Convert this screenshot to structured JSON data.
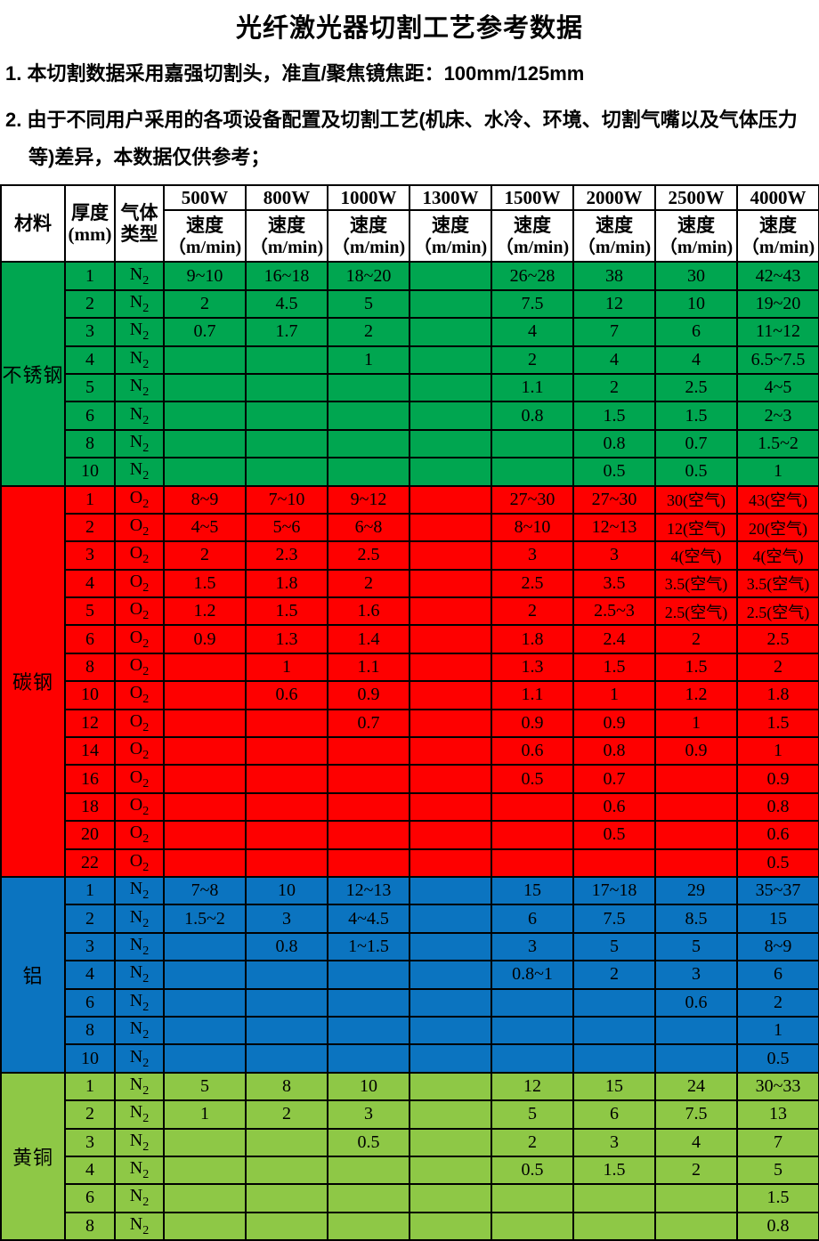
{
  "title": "光纤激光器切割工艺参考数据",
  "notes": [
    "1. 本切割数据采用嘉强切割头，准直/聚焦镜焦距：100mm/125mm",
    "2. 由于不同用户采用的各项设备配置及切割工艺(机床、水冷、环境、切割气嘴以及气体压力等)差异，本数据仅供参考；"
  ],
  "table": {
    "header": {
      "material": "材料",
      "thickness_line1": "厚度",
      "thickness_line2": "(mm)",
      "gas_line1": "气体",
      "gas_line2": "类型",
      "powers": [
        "500W",
        "800W",
        "1000W",
        "1300W",
        "1500W",
        "2000W",
        "2500W",
        "4000W"
      ],
      "speed_line1": "速度",
      "speed_line2": "（m/min)"
    },
    "sections": [
      {
        "material": "不锈钢",
        "color": "#00A650",
        "rows": [
          {
            "thickness": "1",
            "gas": "N2",
            "speeds": [
              "9~10",
              "16~18",
              "18~20",
              "",
              "26~28",
              "38",
              "30",
              "42~43"
            ]
          },
          {
            "thickness": "2",
            "gas": "N2",
            "speeds": [
              "2",
              "4.5",
              "5",
              "",
              "7.5",
              "12",
              "10",
              "19~20"
            ]
          },
          {
            "thickness": "3",
            "gas": "N2",
            "speeds": [
              "0.7",
              "1.7",
              "2",
              "",
              "4",
              "7",
              "6",
              "11~12"
            ]
          },
          {
            "thickness": "4",
            "gas": "N2",
            "speeds": [
              "",
              "",
              "1",
              "",
              "2",
              "4",
              "4",
              "6.5~7.5"
            ]
          },
          {
            "thickness": "5",
            "gas": "N2",
            "speeds": [
              "",
              "",
              "",
              "",
              "1.1",
              "2",
              "2.5",
              "4~5"
            ]
          },
          {
            "thickness": "6",
            "gas": "N2",
            "speeds": [
              "",
              "",
              "",
              "",
              "0.8",
              "1.5",
              "1.5",
              "2~3"
            ]
          },
          {
            "thickness": "8",
            "gas": "N2",
            "speeds": [
              "",
              "",
              "",
              "",
              "",
              "0.8",
              "0.7",
              "1.5~2"
            ]
          },
          {
            "thickness": "10",
            "gas": "N2",
            "speeds": [
              "",
              "",
              "",
              "",
              "",
              "0.5",
              "0.5",
              "1"
            ]
          }
        ]
      },
      {
        "material": "碳钢",
        "color": "#FE0000",
        "rows": [
          {
            "thickness": "1",
            "gas": "O2",
            "speeds": [
              "8~9",
              "7~10",
              "9~12",
              "",
              "27~30",
              "27~30",
              "30(空气)",
              "43(空气)"
            ]
          },
          {
            "thickness": "2",
            "gas": "O2",
            "speeds": [
              "4~5",
              "5~6",
              "6~8",
              "",
              "8~10",
              "12~13",
              "12(空气)",
              "20(空气)"
            ]
          },
          {
            "thickness": "3",
            "gas": "O2",
            "speeds": [
              "2",
              "2.3",
              "2.5",
              "",
              "3",
              "3",
              "4(空气)",
              "4(空气)"
            ]
          },
          {
            "thickness": "4",
            "gas": "O2",
            "speeds": [
              "1.5",
              "1.8",
              "2",
              "",
              "2.5",
              "3.5",
              "3.5(空气)",
              "3.5(空气)"
            ]
          },
          {
            "thickness": "5",
            "gas": "O2",
            "speeds": [
              "1.2",
              "1.5",
              "1.6",
              "",
              "2",
              "2.5~3",
              "2.5(空气)",
              "2.5(空气)"
            ]
          },
          {
            "thickness": "6",
            "gas": "O2",
            "speeds": [
              "0.9",
              "1.3",
              "1.4",
              "",
              "1.8",
              "2.4",
              "2",
              "2.5"
            ]
          },
          {
            "thickness": "8",
            "gas": "O2",
            "speeds": [
              "",
              "1",
              "1.1",
              "",
              "1.3",
              "1.5",
              "1.5",
              "2"
            ]
          },
          {
            "thickness": "10",
            "gas": "O2",
            "speeds": [
              "",
              "0.6",
              "0.9",
              "",
              "1.1",
              "1",
              "1.2",
              "1.8"
            ]
          },
          {
            "thickness": "12",
            "gas": "O2",
            "speeds": [
              "",
              "",
              "0.7",
              "",
              "0.9",
              "0.9",
              "1",
              "1.5"
            ]
          },
          {
            "thickness": "14",
            "gas": "O2",
            "speeds": [
              "",
              "",
              "",
              "",
              "0.6",
              "0.8",
              "0.9",
              "1"
            ]
          },
          {
            "thickness": "16",
            "gas": "O2",
            "speeds": [
              "",
              "",
              "",
              "",
              "0.5",
              "0.7",
              "",
              "0.9"
            ]
          },
          {
            "thickness": "18",
            "gas": "O2",
            "speeds": [
              "",
              "",
              "",
              "",
              "",
              "0.6",
              "",
              "0.8"
            ]
          },
          {
            "thickness": "20",
            "gas": "O2",
            "speeds": [
              "",
              "",
              "",
              "",
              "",
              "0.5",
              "",
              "0.6"
            ]
          },
          {
            "thickness": "22",
            "gas": "O2",
            "speeds": [
              "",
              "",
              "",
              "",
              "",
              "",
              "",
              "0.5"
            ]
          }
        ]
      },
      {
        "material": "铝",
        "color": "#0B74C0",
        "rows": [
          {
            "thickness": "1",
            "gas": "N2",
            "speeds": [
              "7~8",
              "10",
              "12~13",
              "",
              "15",
              "17~18",
              "29",
              "35~37"
            ]
          },
          {
            "thickness": "2",
            "gas": "N2",
            "speeds": [
              "1.5~2",
              "3",
              "4~4.5",
              "",
              "6",
              "7.5",
              "8.5",
              "15"
            ]
          },
          {
            "thickness": "3",
            "gas": "N2",
            "speeds": [
              "",
              "0.8",
              "1~1.5",
              "",
              "3",
              "5",
              "5",
              "8~9"
            ]
          },
          {
            "thickness": "4",
            "gas": "N2",
            "speeds": [
              "",
              "",
              "",
              "",
              "0.8~1",
              "2",
              "3",
              "6"
            ]
          },
          {
            "thickness": "6",
            "gas": "N2",
            "speeds": [
              "",
              "",
              "",
              "",
              "",
              "",
              "0.6",
              "2"
            ]
          },
          {
            "thickness": "8",
            "gas": "N2",
            "speeds": [
              "",
              "",
              "",
              "",
              "",
              "",
              "",
              "1"
            ]
          },
          {
            "thickness": "10",
            "gas": "N2",
            "speeds": [
              "",
              "",
              "",
              "",
              "",
              "",
              "",
              "0.5"
            ]
          }
        ]
      },
      {
        "material": "黄铜",
        "color": "#8EC846",
        "rows": [
          {
            "thickness": "1",
            "gas": "N2",
            "speeds": [
              "5",
              "8",
              "10",
              "",
              "12",
              "15",
              "24",
              "30~33"
            ]
          },
          {
            "thickness": "2",
            "gas": "N2",
            "speeds": [
              "1",
              "2",
              "3",
              "",
              "5",
              "6",
              "7.5",
              "13"
            ]
          },
          {
            "thickness": "3",
            "gas": "N2",
            "speeds": [
              "",
              "",
              "0.5",
              "",
              "2",
              "3",
              "4",
              "7"
            ]
          },
          {
            "thickness": "4",
            "gas": "N2",
            "speeds": [
              "",
              "",
              "",
              "",
              "0.5",
              "1.5",
              "2",
              "5"
            ]
          },
          {
            "thickness": "6",
            "gas": "N2",
            "speeds": [
              "",
              "",
              "",
              "",
              "",
              "",
              "",
              "1.5"
            ]
          },
          {
            "thickness": "8",
            "gas": "N2",
            "speeds": [
              "",
              "",
              "",
              "",
              "",
              "",
              "",
              "0.8"
            ]
          }
        ]
      }
    ]
  }
}
